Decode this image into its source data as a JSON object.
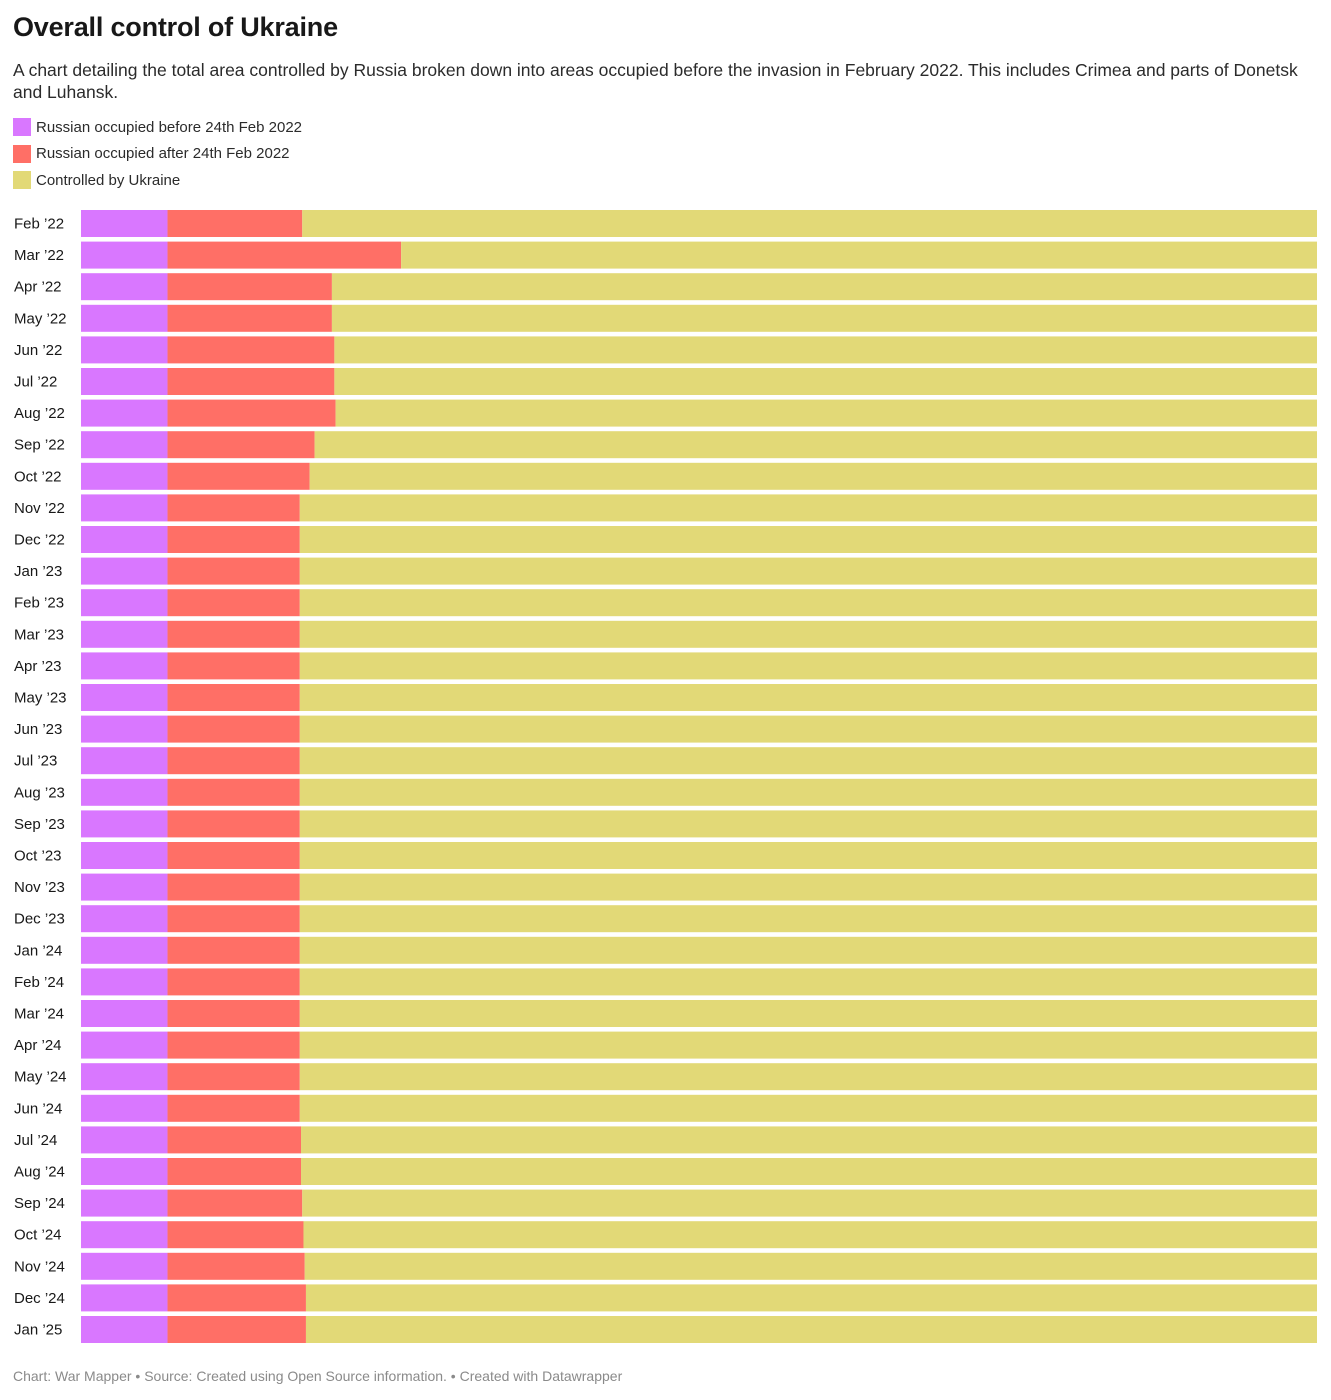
{
  "chart_data": {
    "type": "bar",
    "orientation": "horizontal",
    "stacked": true,
    "title": "Overall control of Ukraine",
    "subtitle": "A chart detailing the total area controlled by Russia broken down into areas occupied before the invasion in February 2022. This includes Crimea and parts of Donetsk and Luhansk.",
    "legend_position": "top-left",
    "grid": false,
    "xlim": [
      0,
      100
    ],
    "categories": [
      "Feb ’22",
      "Mar ’22",
      "Apr ’22",
      "May ’22",
      "Jun ’22",
      "Jul ’22",
      "Aug ’22",
      "Sep ’22",
      "Oct ’22",
      "Nov ’22",
      "Dec ’22",
      "Jan ’23",
      "Feb ’23",
      "Mar ’23",
      "Apr ’23",
      "May ’23",
      "Jun ’23",
      "Jul ’23",
      "Aug ’23",
      "Sep ’23",
      "Oct ’23",
      "Nov ’23",
      "Dec ’23",
      "Jan ’24",
      "Feb ’24",
      "Mar ’24",
      "Apr ’24",
      "May ’24",
      "Jun ’24",
      "Jul ’24",
      "Aug ’24",
      "Sep ’24",
      "Oct ’24",
      "Nov ’24",
      "Dec ’24",
      "Jan ’25"
    ],
    "series": [
      {
        "name": "Russian occupied before 24th Feb 2022",
        "color": "#d977ff",
        "values": [
          7.0,
          7.0,
          7.0,
          7.0,
          7.0,
          7.0,
          7.0,
          7.0,
          7.0,
          7.0,
          7.0,
          7.0,
          7.0,
          7.0,
          7.0,
          7.0,
          7.0,
          7.0,
          7.0,
          7.0,
          7.0,
          7.0,
          7.0,
          7.0,
          7.0,
          7.0,
          7.0,
          7.0,
          7.0,
          7.0,
          7.0,
          7.0,
          7.0,
          7.0,
          7.0,
          7.0
        ]
      },
      {
        "name": "Russian occupied after 24th Feb 2022",
        "color": "#ff6f66",
        "values": [
          10.9,
          18.9,
          13.3,
          13.3,
          13.5,
          13.5,
          13.6,
          11.9,
          11.5,
          10.7,
          10.7,
          10.7,
          10.7,
          10.7,
          10.7,
          10.7,
          10.7,
          10.7,
          10.7,
          10.7,
          10.7,
          10.7,
          10.7,
          10.7,
          10.7,
          10.7,
          10.7,
          10.7,
          10.7,
          10.8,
          10.8,
          10.9,
          11.0,
          11.1,
          11.2,
          11.2
        ]
      },
      {
        "name": "Controlled by Ukraine",
        "color": "#e2d977",
        "values": [
          82.1,
          74.1,
          79.7,
          79.7,
          79.5,
          79.5,
          79.4,
          81.1,
          81.5,
          82.3,
          82.3,
          82.3,
          82.3,
          82.3,
          82.3,
          82.3,
          82.3,
          82.3,
          82.3,
          82.3,
          82.3,
          82.3,
          82.3,
          82.3,
          82.3,
          82.3,
          82.3,
          82.3,
          82.3,
          82.2,
          82.2,
          82.1,
          82.0,
          81.9,
          81.8,
          81.8
        ]
      }
    ]
  },
  "footer": "Chart: War Mapper • Source: Created using Open Source information. • Created with Datawrapper"
}
